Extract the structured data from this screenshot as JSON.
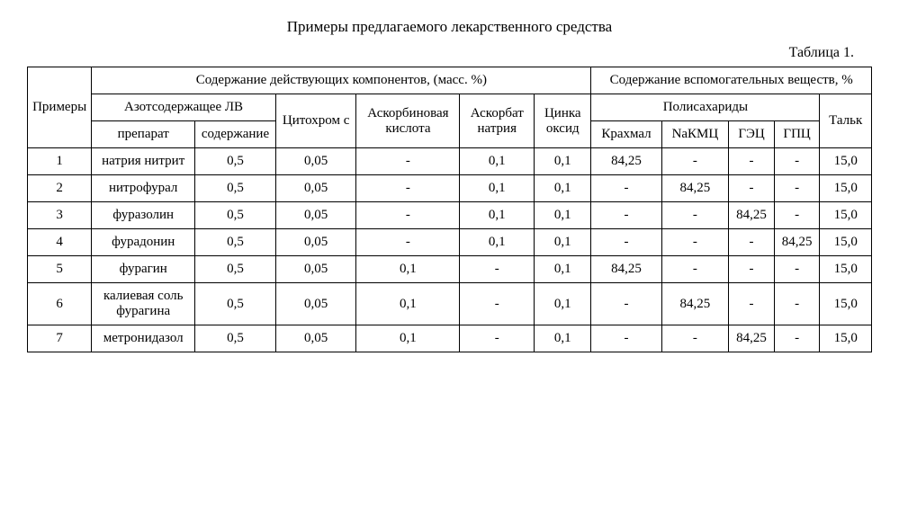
{
  "title": "Примеры предлагаемого лекарственного средства",
  "tableLabel": "Таблица 1.",
  "headers": {
    "examples": "Примеры",
    "activeComponents": "Содержание действующих компонентов, (масс. %)",
    "auxSubstances": "Содержание вспомогательных веществ, %",
    "nitrogenLV": "Азотсодержащее ЛВ",
    "cytochrome": "Цитохром c",
    "ascorbicAcid": "Аскорбиновая кислота",
    "ascorbateNa": "Аскорбат натрия",
    "zincOxide": "Цинка оксид",
    "polysaccharides": "Полисахариды",
    "talc": "Тальк",
    "drug": "препарат",
    "content": "содержание",
    "starch": "Крахмал",
    "nakmc": "NaКМЦ",
    "gec": "ГЭЦ",
    "gpc": "ГПЦ"
  },
  "rows": [
    {
      "n": "1",
      "drug": "натрия нитрит",
      "content": "0,5",
      "cyt": "0,05",
      "asc": "-",
      "ascna": "0,1",
      "zn": "0,1",
      "starch": "84,25",
      "nakmc": "-",
      "gec": "-",
      "gpc": "-",
      "talc": "15,0"
    },
    {
      "n": "2",
      "drug": "нитрофурал",
      "content": "0,5",
      "cyt": "0,05",
      "asc": "-",
      "ascna": "0,1",
      "zn": "0,1",
      "starch": "-",
      "nakmc": "84,25",
      "gec": "-",
      "gpc": "-",
      "talc": "15,0"
    },
    {
      "n": "3",
      "drug": "фуразолин",
      "content": "0,5",
      "cyt": "0,05",
      "asc": "-",
      "ascna": "0,1",
      "zn": "0,1",
      "starch": "-",
      "nakmc": "-",
      "gec": "84,25",
      "gpc": "-",
      "talc": "15,0"
    },
    {
      "n": "4",
      "drug": "фурадонин",
      "content": "0,5",
      "cyt": "0,05",
      "asc": "-",
      "ascna": "0,1",
      "zn": "0,1",
      "starch": "-",
      "nakmc": "-",
      "gec": "-",
      "gpc": "84,25",
      "talc": "15,0"
    },
    {
      "n": "5",
      "drug": "фурагин",
      "content": "0,5",
      "cyt": "0,05",
      "asc": "0,1",
      "ascna": "-",
      "zn": "0,1",
      "starch": "84,25",
      "nakmc": "-",
      "gec": "-",
      "gpc": "-",
      "talc": "15,0"
    },
    {
      "n": "6",
      "drug": "калиевая соль фурагина",
      "content": "0,5",
      "cyt": "0,05",
      "asc": "0,1",
      "ascna": "-",
      "zn": "0,1",
      "starch": "-",
      "nakmc": "84,25",
      "gec": "-",
      "gpc": "-",
      "talc": "15,0"
    },
    {
      "n": "7",
      "drug": "метронидазол",
      "content": "0,5",
      "cyt": "0,05",
      "asc": "0,1",
      "ascna": "-",
      "zn": "0,1",
      "starch": "-",
      "nakmc": "-",
      "gec": "84,25",
      "gpc": "-",
      "talc": "15,0"
    }
  ]
}
